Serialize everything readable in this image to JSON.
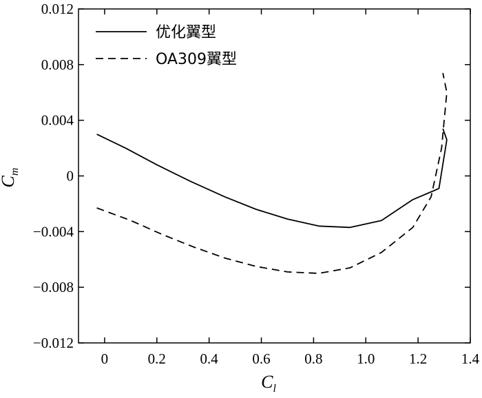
{
  "chart_data": {
    "type": "line",
    "xlabel": {
      "main": "C",
      "sub": "l"
    },
    "ylabel": {
      "main": "C",
      "sub": "m"
    },
    "xlim": [
      -0.1,
      1.4
    ],
    "ylim": [
      -0.012,
      0.012
    ],
    "xticks": [
      0,
      0.2,
      0.4,
      0.6,
      0.8,
      1.0,
      1.2,
      1.4
    ],
    "xtick_labels": [
      "0",
      "0.2",
      "0.4",
      "0.6",
      "0.8",
      "1.0",
      "1.2",
      "1.4"
    ],
    "yticks": [
      -0.012,
      -0.008,
      -0.004,
      0,
      0.004,
      0.008,
      0.012
    ],
    "ytick_labels": [
      "−0.012",
      "−0.008",
      "−0.004",
      "0",
      "0.004",
      "0.008",
      "0.012"
    ],
    "grid": false,
    "legend_position": "top-left",
    "series": [
      {
        "name": "优化翼型",
        "style": "solid",
        "color": "#000000",
        "x": [
          -0.03,
          0.08,
          0.2,
          0.33,
          0.46,
          0.58,
          0.7,
          0.82,
          0.94,
          1.06,
          1.18,
          1.28,
          1.31,
          1.295
        ],
        "y": [
          0.003,
          0.002,
          0.0008,
          -0.0004,
          -0.0015,
          -0.0024,
          -0.0031,
          -0.0036,
          -0.0037,
          -0.0032,
          -0.0017,
          -0.0009,
          0.0026,
          0.0034
        ]
      },
      {
        "name": "OA309翼型",
        "style": "dashed",
        "color": "#000000",
        "x": [
          -0.03,
          0.1,
          0.22,
          0.34,
          0.46,
          0.58,
          0.7,
          0.82,
          0.94,
          1.06,
          1.18,
          1.25,
          1.29,
          1.31,
          1.295
        ],
        "y": [
          -0.0023,
          -0.0032,
          -0.0042,
          -0.0051,
          -0.0059,
          -0.0065,
          -0.0069,
          -0.007,
          -0.0066,
          -0.0055,
          -0.0037,
          -0.0015,
          0.002,
          0.006,
          0.0074
        ]
      }
    ]
  }
}
